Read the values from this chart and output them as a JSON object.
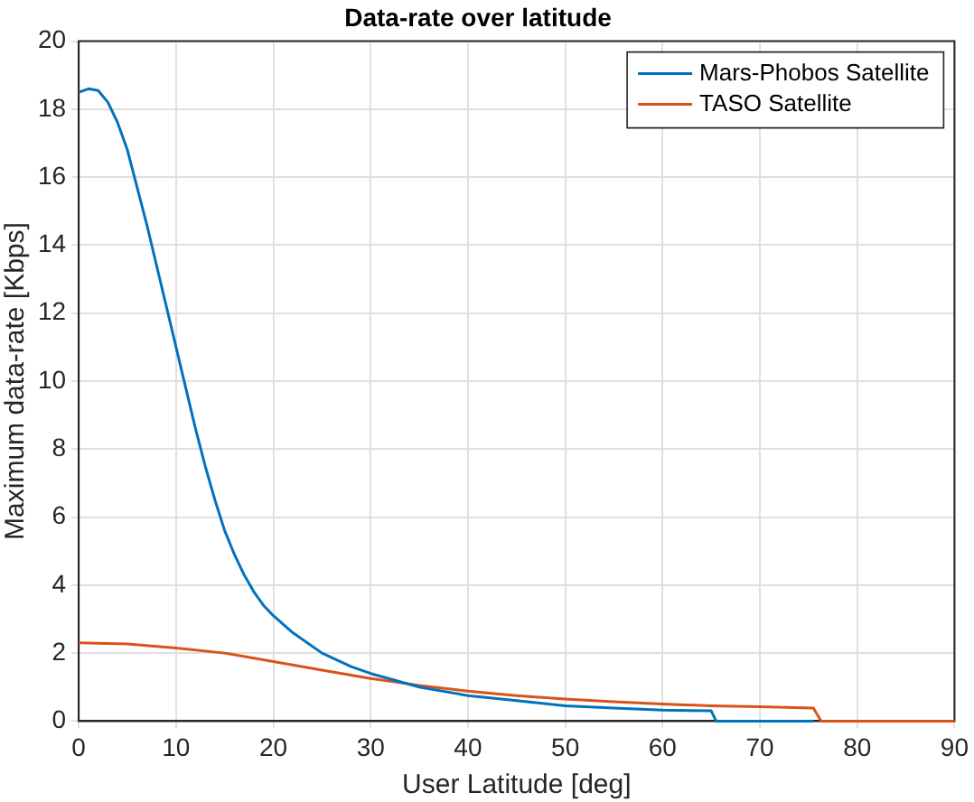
{
  "chart_data": {
    "type": "line",
    "title": "Data-rate over latitude",
    "xlabel": "User Latitude [deg]",
    "ylabel": "Maximum data-rate [Kbps]",
    "xlim": [
      0,
      90
    ],
    "xticks": [
      0,
      10,
      20,
      30,
      40,
      50,
      60,
      70,
      80,
      90
    ],
    "ylim": [
      0,
      20
    ],
    "yticks": [
      0,
      2,
      4,
      6,
      8,
      10,
      12,
      14,
      16,
      18,
      20
    ],
    "grid": true,
    "legend": "top right",
    "marker": "none",
    "line_style": "solid",
    "series": [
      {
        "name": "Mars-Phobos Satellite",
        "color": "#0072bd",
        "x": [
          0,
          1,
          2,
          3,
          4,
          5,
          6,
          7,
          8,
          9,
          10,
          11,
          12,
          13,
          14,
          15,
          16,
          17,
          18,
          19,
          20,
          22,
          25,
          28,
          30,
          35,
          40,
          45,
          50,
          55,
          60,
          65,
          65.5,
          75.5
        ],
        "values": [
          18.5,
          18.6,
          18.55,
          18.2,
          17.6,
          16.8,
          15.7,
          14.6,
          13.4,
          12.2,
          11,
          9.8,
          8.6,
          7.5,
          6.5,
          5.6,
          4.9,
          4.3,
          3.8,
          3.4,
          3.1,
          2.6,
          2,
          1.6,
          1.4,
          1,
          0.75,
          0.6,
          0.45,
          0.38,
          0.32,
          0.3,
          0,
          0
        ]
      },
      {
        "name": "TASO Satellite",
        "color": "#d95319",
        "x": [
          0,
          5,
          10,
          15,
          20,
          25,
          30,
          35,
          40,
          45,
          50,
          55,
          60,
          65,
          70,
          75.5,
          76.3,
          90
        ],
        "values": [
          2.3,
          2.27,
          2.15,
          2,
          1.75,
          1.5,
          1.25,
          1.05,
          0.88,
          0.75,
          0.65,
          0.57,
          0.5,
          0.45,
          0.42,
          0.38,
          0,
          0
        ]
      }
    ]
  }
}
